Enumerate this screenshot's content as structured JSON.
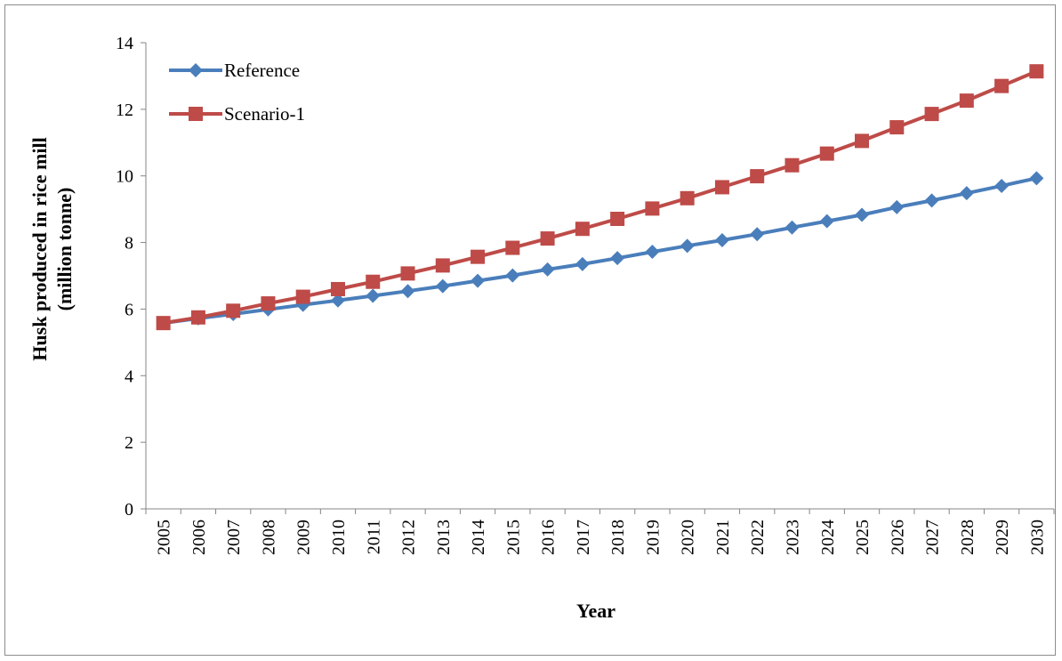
{
  "chart_data": {
    "type": "line",
    "title": "",
    "xlabel": "Year",
    "ylabel_line1": "Husk produced in rice mill",
    "ylabel_line2": "(million tonne)",
    "ylim": [
      0,
      14
    ],
    "yticks": [
      0,
      2,
      4,
      6,
      8,
      10,
      12,
      14
    ],
    "categories": [
      "2005",
      "2006",
      "2007",
      "2008",
      "2009",
      "2010",
      "2011",
      "2012",
      "2013",
      "2014",
      "2015",
      "2016",
      "2017",
      "2018",
      "2019",
      "2020",
      "2021",
      "2022",
      "2023",
      "2024",
      "2025",
      "2026",
      "2027",
      "2028",
      "2029",
      "2030"
    ],
    "series": [
      {
        "name": "Reference",
        "color": "#4a7ebb",
        "marker": "diamond",
        "values": [
          5.58,
          5.72,
          5.85,
          5.99,
          6.13,
          6.26,
          6.4,
          6.54,
          6.69,
          6.85,
          7.01,
          7.19,
          7.35,
          7.53,
          7.72,
          7.9,
          8.07,
          8.25,
          8.45,
          8.64,
          8.83,
          9.06,
          9.26,
          9.48,
          9.7,
          9.93
        ]
      },
      {
        "name": "Scenario-1",
        "color": "#be4b48",
        "marker": "square",
        "values": [
          5.58,
          5.75,
          5.95,
          6.17,
          6.37,
          6.6,
          6.82,
          7.07,
          7.31,
          7.57,
          7.84,
          8.12,
          8.41,
          8.71,
          9.02,
          9.33,
          9.66,
          9.99,
          10.32,
          10.67,
          11.05,
          11.46,
          11.86,
          12.26,
          12.7,
          13.14
        ]
      }
    ],
    "legend_position": "top-left",
    "grid": false
  }
}
